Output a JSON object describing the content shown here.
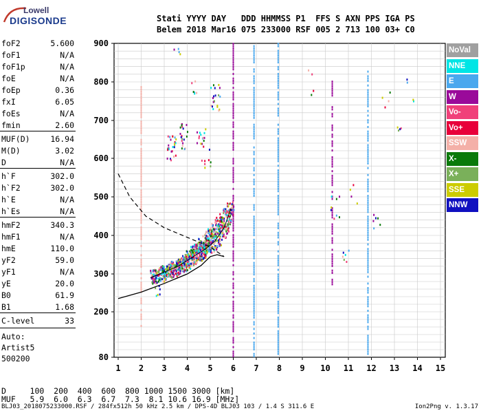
{
  "logo": {
    "line1": "Lowell",
    "line2": "DIGISONDE"
  },
  "header": {
    "line1": "Stati YYYY DAY   DDD HHMMSS P1  FFS S AXN PPS IGA PS",
    "line2": "Belem 2018 Mar16 075 233000 RSF 005 2 713 100 03+ C0"
  },
  "params": [
    {
      "name": "foF2",
      "value": "5.600"
    },
    {
      "name": "foF1",
      "value": "N/A"
    },
    {
      "name": "foF1p",
      "value": "N/A"
    },
    {
      "name": "foE",
      "value": "N/A"
    },
    {
      "name": "foEp",
      "value": "0.36"
    },
    {
      "name": "fxI",
      "value": "6.05"
    },
    {
      "name": "foEs",
      "value": "N/A"
    },
    {
      "name": "fmin",
      "value": "2.60"
    },
    {
      "name": "MUF(D)",
      "value": "16.94"
    },
    {
      "name": "M(D)",
      "value": "3.02"
    },
    {
      "name": "D",
      "value": "N/A"
    },
    {
      "name": "h`F",
      "value": "302.0"
    },
    {
      "name": "h`F2",
      "value": "302.0"
    },
    {
      "name": "h`E",
      "value": "N/A"
    },
    {
      "name": "h`Es",
      "value": "N/A"
    },
    {
      "name": "hmF2",
      "value": "340.3"
    },
    {
      "name": "hmF1",
      "value": "N/A"
    },
    {
      "name": "hmE",
      "value": "110.0"
    },
    {
      "name": "yF2",
      "value": "59.0"
    },
    {
      "name": "yF1",
      "value": "N/A"
    },
    {
      "name": "yE",
      "value": "20.0"
    },
    {
      "name": "B0",
      "value": "61.9"
    },
    {
      "name": "B1",
      "value": "1.68"
    },
    {
      "name": "C-level",
      "value": "33"
    }
  ],
  "auto": [
    "Auto:",
    "Artist5",
    "500200"
  ],
  "legend": [
    {
      "label": "NoVal",
      "color": "#a0a0a0"
    },
    {
      "label": "NNE",
      "color": "#00e5e5"
    },
    {
      "label": "E",
      "color": "#4aa8ee"
    },
    {
      "label": "W",
      "color": "#9a0a9a"
    },
    {
      "label": "Vo-",
      "color": "#f0407a"
    },
    {
      "label": "Vo+",
      "color": "#e8003a"
    },
    {
      "label": "SSW",
      "color": "#f4b0a8"
    },
    {
      "label": "X-",
      "color": "#0a7a0a"
    },
    {
      "label": "X+",
      "color": "#7ab05a"
    },
    {
      "label": "SSE",
      "color": "#cccc00"
    },
    {
      "label": "NNW",
      "color": "#1010c0"
    }
  ],
  "bottom": {
    "d_line": "D     100  200  400  600  800 1000 1500 3000 [km]",
    "muf_line": "MUF   5.9  6.0  6.3  6.7  7.3  8.1 10.6 16.9 [MHz]"
  },
  "footer": {
    "left": "BLJ03_2018075233000.RSF / 284fx512h 50 kHz 2.5 km / DPS-4D BLJ03 103 / 1.4 S 311.6 E",
    "right": "Ion2Png v. 1.3.17"
  },
  "chart_data": {
    "type": "scatter",
    "x_ticks": [
      "1",
      "2",
      "3",
      "4",
      "5",
      "6",
      "7",
      "8",
      "9",
      "10",
      "11",
      "12",
      "13",
      "14",
      "15"
    ],
    "y_ticks": [
      "80",
      "200",
      "300",
      "400",
      "500",
      "600",
      "700",
      "800",
      "900"
    ],
    "xlim": [
      1,
      15
    ],
    "ylim": [
      80,
      900
    ],
    "y_scale": "nonlinear",
    "grid": true,
    "xlabel": "",
    "ylabel": "",
    "trace_color_key": [
      "#4aa8ee",
      "#e8003a",
      "#f0407a",
      "#9a0a9a",
      "#1010c0",
      "#0a7a0a",
      "#7ab05a",
      "#00e5e5",
      "#f4b0a8",
      "#cccc00"
    ],
    "vertical_streaks": [
      {
        "x": 2.0,
        "y": [
          160,
          790
        ],
        "color": "#f4b0a8"
      },
      {
        "x": 6.0,
        "y": [
          80,
          900
        ],
        "color": "#9a0a9a"
      },
      {
        "x": 6.9,
        "y": [
          80,
          900
        ],
        "color": "#4aa8ee"
      },
      {
        "x": 7.95,
        "y": [
          80,
          900
        ],
        "color": "#4aa8ee"
      },
      {
        "x": 10.3,
        "y": [
          270,
          800
        ],
        "color": "#9a0a9a"
      },
      {
        "x": 11.85,
        "y": [
          80,
          830
        ],
        "color": "#4aa8ee"
      }
    ],
    "o_trace": [
      [
        2.4,
        290
      ],
      [
        2.8,
        300
      ],
      [
        3.2,
        310
      ],
      [
        3.6,
        320
      ],
      [
        4.0,
        335
      ],
      [
        4.4,
        350
      ],
      [
        4.8,
        365
      ],
      [
        5.2,
        385
      ],
      [
        5.6,
        420
      ],
      [
        5.9,
        470
      ]
    ],
    "x_trace": [
      [
        2.9,
        300
      ],
      [
        3.3,
        315
      ],
      [
        3.7,
        330
      ],
      [
        4.1,
        350
      ],
      [
        4.5,
        375
      ],
      [
        4.9,
        400
      ],
      [
        5.3,
        430
      ],
      [
        5.8,
        480
      ]
    ],
    "profile_solid": [
      [
        1.0,
        235
      ],
      [
        2.0,
        252
      ],
      [
        3.0,
        275
      ],
      [
        4.0,
        300
      ],
      [
        4.6,
        322
      ],
      [
        5.0,
        345
      ],
      [
        5.3,
        350
      ],
      [
        5.6,
        345
      ]
    ],
    "profile_dashed": [
      [
        1.0,
        560
      ],
      [
        1.5,
        500
      ],
      [
        2.2,
        450
      ],
      [
        3.0,
        420
      ],
      [
        4.0,
        395
      ],
      [
        5.0,
        370
      ],
      [
        5.6,
        345
      ]
    ]
  }
}
